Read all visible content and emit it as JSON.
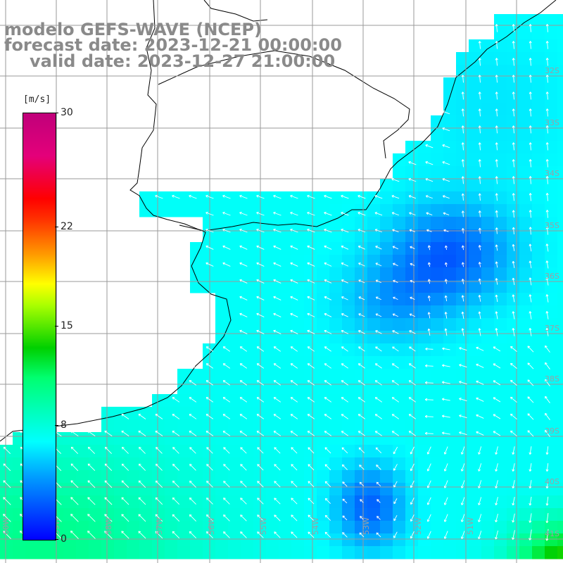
{
  "header": {
    "line1": "modelo GEFS-WAVE (NCEP)",
    "line2": "forecast date: 2023-12-21 00:00:00",
    "line3": "valid date: 2023-12-27 21:00:00"
  },
  "colorbar": {
    "unit": "[m/s]",
    "ticks": [
      {
        "label": "30",
        "value": 30
      },
      {
        "label": "22",
        "value": 22
      },
      {
        "label": "15",
        "value": 15
      },
      {
        "label": "8",
        "value": 8
      },
      {
        "label": "0",
        "value": 0
      }
    ],
    "range": [
      0,
      30
    ]
  },
  "map": {
    "lat_labels": [
      "32S",
      "33S",
      "34S",
      "35S",
      "36S",
      "37S",
      "38S",
      "39S",
      "40S",
      "41S"
    ],
    "lon_labels": [
      "60W",
      "59W",
      "58W",
      "57W",
      "56W",
      "55W",
      "54W",
      "53W",
      "52W",
      "51W"
    ],
    "colors": {
      "land": "#ffffff",
      "coast": "#000000",
      "grid": "#9a9a9a",
      "arrow": "#ffffff"
    }
  }
}
